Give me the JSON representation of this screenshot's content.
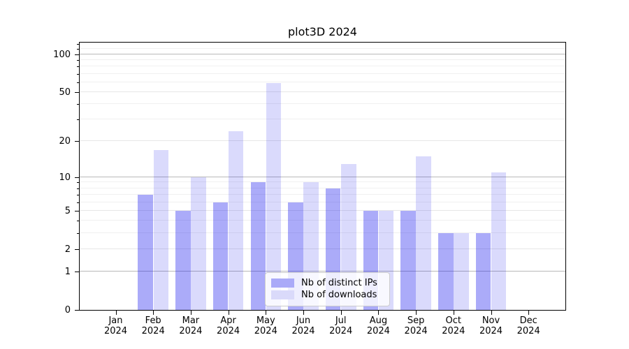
{
  "title": "plot3D 2024",
  "chart_data": {
    "type": "bar",
    "title": "plot3D 2024",
    "categories": [
      "Jan",
      "Feb",
      "Mar",
      "Apr",
      "May",
      "Jun",
      "Jul",
      "Aug",
      "Sep",
      "Oct",
      "Nov",
      "Dec"
    ],
    "year": "2024",
    "series": [
      {
        "name": "Nb of distinct IPs",
        "values": [
          0,
          7,
          5,
          6,
          9,
          6,
          8,
          5,
          5,
          3,
          3,
          0
        ],
        "color": "rgba(8,8,238,0.34)"
      },
      {
        "name": "Nb of downloads",
        "values": [
          0,
          17,
          10,
          24,
          59,
          9,
          13,
          5,
          15,
          3,
          11,
          0
        ],
        "color": "rgba(8,8,238,0.15)"
      }
    ],
    "yscale": "log1p",
    "ylim": [
      0,
      125
    ],
    "yticks_labeled": [
      0,
      1,
      2,
      5,
      10,
      20,
      50,
      100
    ],
    "yticks_major": [
      1,
      10,
      100
    ],
    "yticks_minor_unlabeled": [
      3,
      4,
      6,
      7,
      8,
      9,
      30,
      40,
      60,
      70,
      80,
      90,
      110,
      120
    ],
    "grid": "horizontal",
    "legend_position": "lower center",
    "xlabel": "",
    "ylabel": ""
  },
  "legend": {
    "entries": [
      {
        "label": "Nb of distinct IPs",
        "swatch": "dark"
      },
      {
        "label": "Nb of downloads",
        "swatch": "light"
      }
    ]
  },
  "colors": {
    "bar_dark": "#aaaaf8",
    "bar_light": "#dadafa",
    "grid_major": "#b9b9b9",
    "grid_minor": "#f0f0f0",
    "axis": "#000000",
    "background": "#ffffff"
  }
}
